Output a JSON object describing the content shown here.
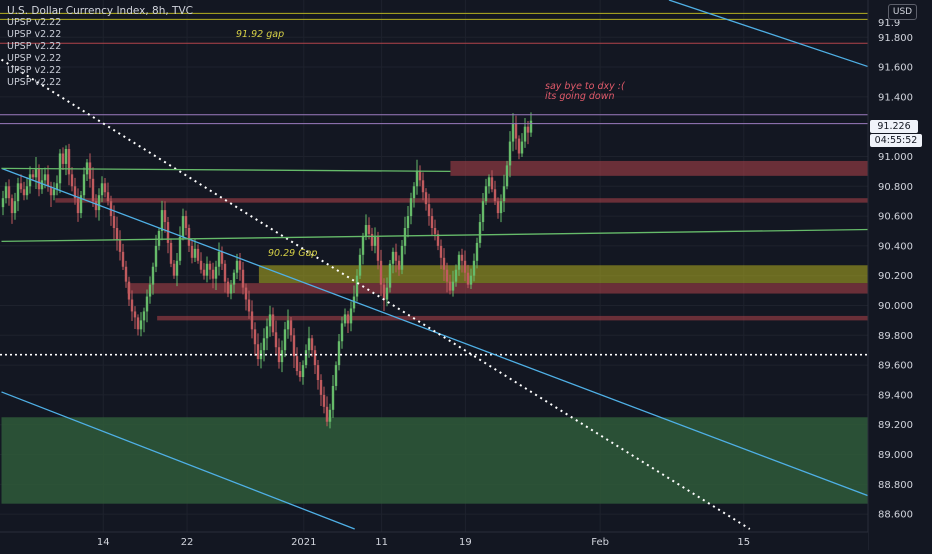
{
  "header": {
    "title": "U.S. Dollar Currency Index, 8h, TVC",
    "indicators": [
      "UPSP v2.22",
      "UPSP v2.22",
      "UPSP v2.22",
      "UPSP v2.22",
      "UPSP v2.22",
      "UPSP v2.22"
    ]
  },
  "currency_badge": "USD",
  "last_price_tag": "91.226",
  "countdown_tag": "04:55:52",
  "annotations": {
    "gap_upper": "91.92 gap",
    "gap_lower": "90.29 Gap",
    "note_line1": "say bye to dxy  :(",
    "note_line2": "its going down"
  },
  "colors": {
    "background": "#131722",
    "up_candle": "#66bb6a",
    "down_candle": "#c05a5e",
    "trend_line": "#4fb0e6",
    "zone_red": "#b2444a",
    "zone_yellow": "#b5b020",
    "zone_green": "#2f5a3a"
  },
  "chart_data": {
    "type": "candlestick",
    "symbol": "U.S. Dollar Currency Index",
    "interval": "8h",
    "source": "TVC",
    "y_ticks": [
      91.8,
      91.6,
      91.4,
      91.0,
      90.8,
      90.6,
      90.4,
      90.2,
      90.0,
      89.8,
      89.6,
      89.4,
      89.2,
      89.0,
      88.8,
      88.6
    ],
    "y_tick_labels": [
      "91.800",
      "91.600",
      "91.400",
      "91.000",
      "90.800",
      "90.600",
      "90.400",
      "90.200",
      "90.000",
      "89.800",
      "89.600",
      "89.400",
      "89.200",
      "89.000",
      "88.800",
      "88.600"
    ],
    "y_tick_partial": "91.9",
    "ylim": [
      88.48,
      92.05
    ],
    "x_ticks": [
      {
        "label": "14",
        "bar": 34
      },
      {
        "label": "22",
        "bar": 62
      },
      {
        "label": "2021",
        "bar": 101
      },
      {
        "label": "11",
        "bar": 127
      },
      {
        "label": "19",
        "bar": 155
      },
      {
        "label": "Feb",
        "bar": 200
      },
      {
        "label": "15",
        "bar": 248
      }
    ],
    "bars_visible": 290,
    "last_price": 91.226,
    "horizontal_levels": [
      {
        "price": 91.96,
        "color": "#b5b020",
        "label": "91.92 gap"
      },
      {
        "price": 91.92,
        "color": "#b5b020"
      },
      {
        "price": 91.76,
        "color": "#b2444a"
      },
      {
        "price": 91.28,
        "color": "#9c7bbf"
      },
      {
        "price": 91.22,
        "color": "#9c7bbf"
      },
      {
        "price": 89.67,
        "color": "#ffffff",
        "style": "dotted"
      }
    ],
    "zones": [
      {
        "from_bar": 150,
        "to_bar": 290,
        "top": 90.97,
        "bottom": 90.87,
        "color": "#b2444a"
      },
      {
        "from_bar": 18,
        "to_bar": 290,
        "top": 90.72,
        "bottom": 90.69,
        "color": "#b2444a"
      },
      {
        "from_bar": 86,
        "to_bar": 290,
        "top": 90.27,
        "bottom": 90.15,
        "color": "#b5b020"
      },
      {
        "from_bar": 42,
        "to_bar": 290,
        "top": 90.15,
        "bottom": 90.08,
        "color": "#b2444a"
      },
      {
        "from_bar": 52,
        "to_bar": 290,
        "top": 89.93,
        "bottom": 89.9,
        "color": "#b2444a"
      },
      {
        "from_bar": 0,
        "to_bar": 290,
        "top": 89.25,
        "bottom": 88.67,
        "color": "#2f5a3a"
      }
    ],
    "trendlines": [
      {
        "from": [
          0,
          90.92
        ],
        "to": [
          290,
          88.72
        ],
        "color": "#4fb0e6"
      },
      {
        "from": [
          0,
          89.42
        ],
        "to": [
          118,
          88.5
        ],
        "color": "#4fb0e6"
      },
      {
        "from": [
          223,
          92.05
        ],
        "to": [
          290,
          91.6
        ],
        "color": "#4fb0e6"
      },
      {
        "from": [
          0,
          91.65
        ],
        "to": [
          250,
          88.5
        ],
        "color": "#ffffff",
        "style": "dotted"
      },
      {
        "from": [
          0,
          90.92
        ],
        "to": [
          150,
          90.9
        ],
        "color": "#66bb6a"
      },
      {
        "from": [
          0,
          90.43
        ],
        "to": [
          290,
          90.51
        ],
        "color": "#66bb6a"
      }
    ],
    "candles_close": [
      90.72,
      90.8,
      90.72,
      90.62,
      90.7,
      90.82,
      90.78,
      90.74,
      90.8,
      90.88,
      90.86,
      90.92,
      90.78,
      90.84,
      90.88,
      90.8,
      90.74,
      90.78,
      90.82,
      91.02,
      90.95,
      91.05,
      90.88,
      90.8,
      90.72,
      90.62,
      90.74,
      90.88,
      90.96,
      90.85,
      90.7,
      90.64,
      90.74,
      90.82,
      90.76,
      90.7,
      90.6,
      90.52,
      90.44,
      90.36,
      90.26,
      90.16,
      90.04,
      89.96,
      89.92,
      89.84,
      89.9,
      89.96,
      90.06,
      90.14,
      90.26,
      90.4,
      90.5,
      90.64,
      90.56,
      90.42,
      90.28,
      90.2,
      90.3,
      90.46,
      90.6,
      90.52,
      90.4,
      90.32,
      90.38,
      90.3,
      90.24,
      90.2,
      90.28,
      90.24,
      90.18,
      90.26,
      90.36,
      90.28,
      90.16,
      90.08,
      90.14,
      90.22,
      90.3,
      90.24,
      90.12,
      90.04,
      89.96,
      89.84,
      89.74,
      89.64,
      89.7,
      89.78,
      89.86,
      89.94,
      89.82,
      89.72,
      89.62,
      89.7,
      89.84,
      89.9,
      89.8,
      89.66,
      89.56,
      89.52,
      89.6,
      89.7,
      89.78,
      89.7,
      89.6,
      89.5,
      89.4,
      89.32,
      89.22,
      89.3,
      89.46,
      89.6,
      89.76,
      89.88,
      89.94,
      89.88,
      89.98,
      90.06,
      90.2,
      90.34,
      90.46,
      90.54,
      90.48,
      90.4,
      90.46,
      90.3,
      90.14,
      90.04,
      90.12,
      90.28,
      90.36,
      90.3,
      90.24,
      90.4,
      90.52,
      90.6,
      90.72,
      90.8,
      90.9,
      90.84,
      90.76,
      90.68,
      90.6,
      90.52,
      90.48,
      90.4,
      90.32,
      90.24,
      90.16,
      90.1,
      90.16,
      90.24,
      90.34,
      90.3,
      90.22,
      90.14,
      90.2,
      90.3,
      90.42,
      90.56,
      90.7,
      90.8,
      90.86,
      90.78,
      90.7,
      90.62,
      90.7,
      90.8,
      90.94,
      91.1,
      91.22,
      91.12,
      91.02,
      91.1,
      91.2,
      91.16,
      91.24
    ]
  }
}
